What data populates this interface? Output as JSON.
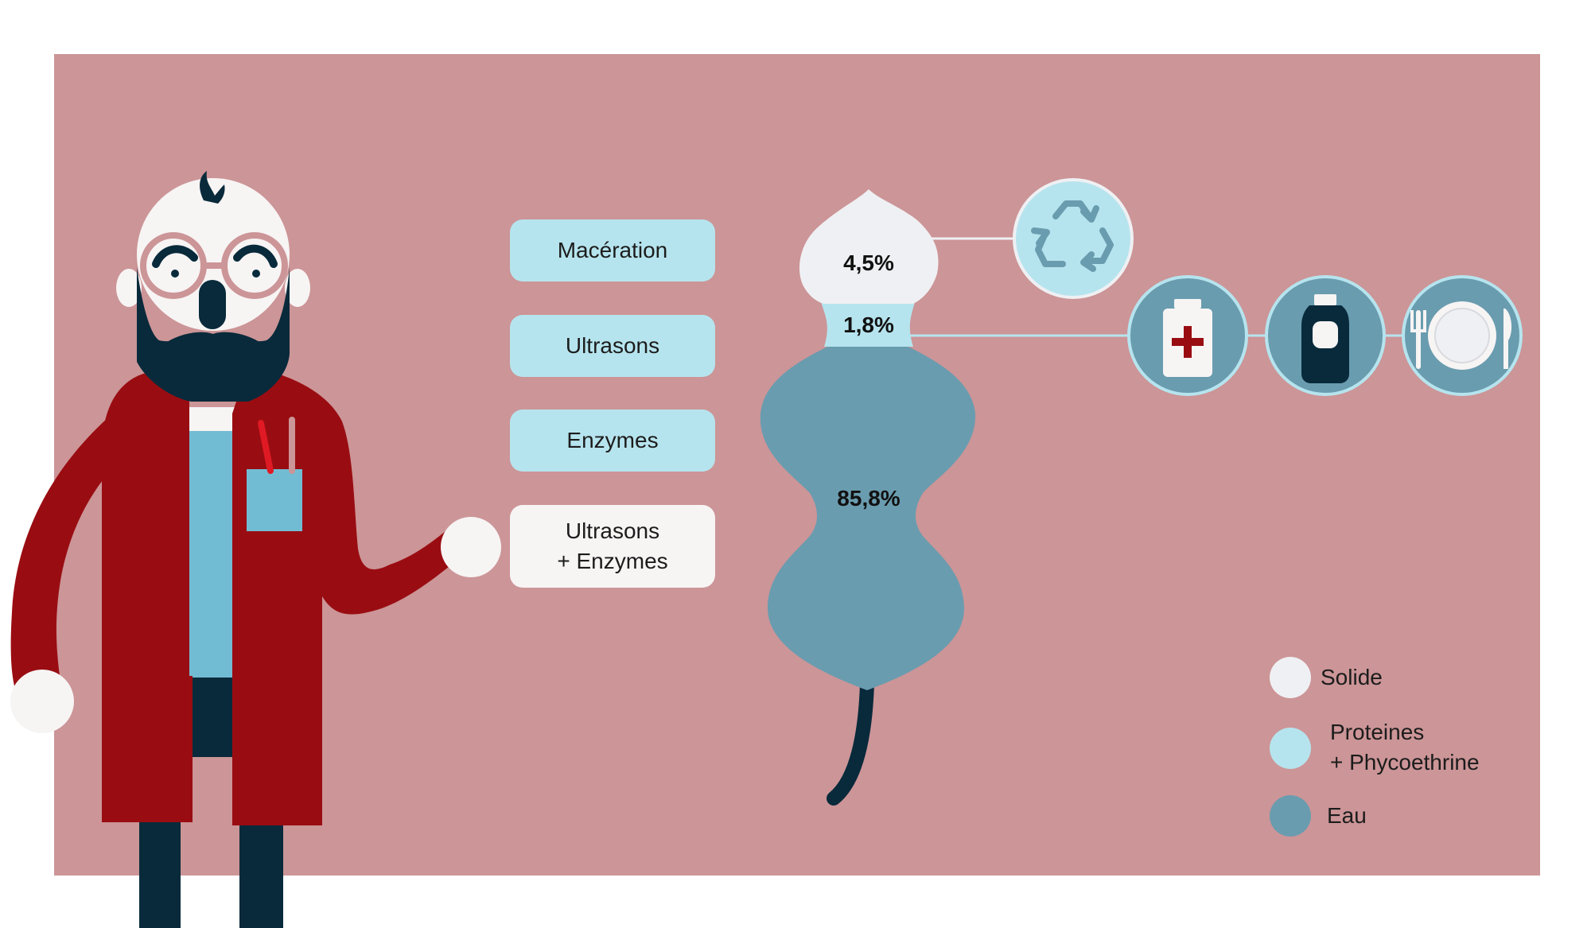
{
  "methods": [
    {
      "label": "Macération",
      "highlighted": false
    },
    {
      "label": "Ultrasons",
      "highlighted": false
    },
    {
      "label": "Enzymes",
      "highlighted": false
    },
    {
      "label_line1": "Ultrasons",
      "label_line2": "+ Enzymes",
      "highlighted": true
    }
  ],
  "composition": {
    "solide": "4,5%",
    "proteines": "1,8%",
    "eau": "85,8%"
  },
  "legend": [
    {
      "label": "Solide",
      "color": "#eff0f3"
    },
    {
      "label_line1": "Proteines",
      "label_line2": "+ Phycoethrine",
      "color": "#b6e4ee"
    },
    {
      "label": "Eau",
      "color": "#6a9caf"
    }
  ],
  "uses": {
    "recycling_icon": "recycle-icon",
    "application_icons": [
      "medicine-bottle-icon",
      "cosmetic-bottle-icon",
      "plate-cutlery-icon"
    ]
  },
  "colors": {
    "background": "#cc9597",
    "pill": "#b6e4ee",
    "pill_highlight": "#f7f4f4",
    "solid": "#eff0f3",
    "protein": "#b6e4ee",
    "water": "#6a9caf",
    "dark": "#082a3b",
    "coat": "#990d12"
  }
}
